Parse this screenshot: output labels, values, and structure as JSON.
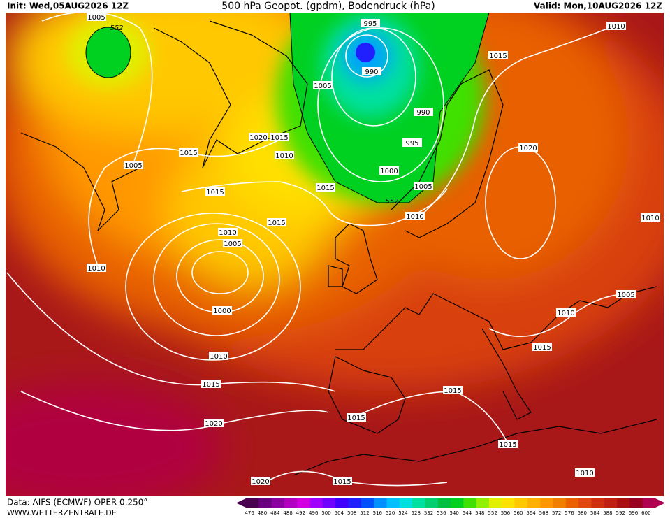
{
  "header": {
    "init": "Init: Wed,05AUG2026 12Z",
    "title": "500 hPa Geopot. (gpdm), Bodendruck (hPa)",
    "valid": "Valid: Mon,10AUG2026 12Z"
  },
  "isobar_labels": [
    1005,
    995,
    990,
    1005,
    990,
    995,
    1000,
    1005,
    1010,
    1010,
    1015,
    1020,
    1010,
    1005,
    1010,
    1015,
    1020,
    1015,
    1015,
    1010,
    1005,
    1015,
    1015,
    1015,
    1010,
    1005,
    1000,
    1010,
    1010,
    1015,
    1020,
    1015,
    1015,
    1015,
    1010,
    1020,
    1015
  ],
  "geopotential_labels": [
    552,
    552
  ],
  "legend": {
    "values": [
      476,
      480,
      484,
      488,
      492,
      496,
      500,
      504,
      508,
      512,
      516,
      520,
      524,
      528,
      532,
      536,
      540,
      544,
      548,
      552,
      556,
      560,
      564,
      568,
      572,
      576,
      580,
      584,
      588,
      592,
      596,
      600
    ],
    "colors": [
      "#4b0050",
      "#6a0080",
      "#8a00a0",
      "#b000c0",
      "#d000e0",
      "#a000ff",
      "#7000ff",
      "#4000ff",
      "#2020ff",
      "#0050ff",
      "#0090ff",
      "#00c0ff",
      "#00e0e0",
      "#00e0a0",
      "#00d070",
      "#00c040",
      "#00d020",
      "#40e000",
      "#90f000",
      "#e0f000",
      "#ffe000",
      "#ffc800",
      "#ffb000",
      "#ff9800",
      "#f08000",
      "#e86000",
      "#e04810",
      "#d03010",
      "#c02010",
      "#a81010",
      "#980020",
      "#b00050"
    ]
  },
  "footer": {
    "source": "Data: AIFS (ECMWF) OPER 0.250°",
    "url": "WWW.WETTERZENTRALE.DE"
  }
}
